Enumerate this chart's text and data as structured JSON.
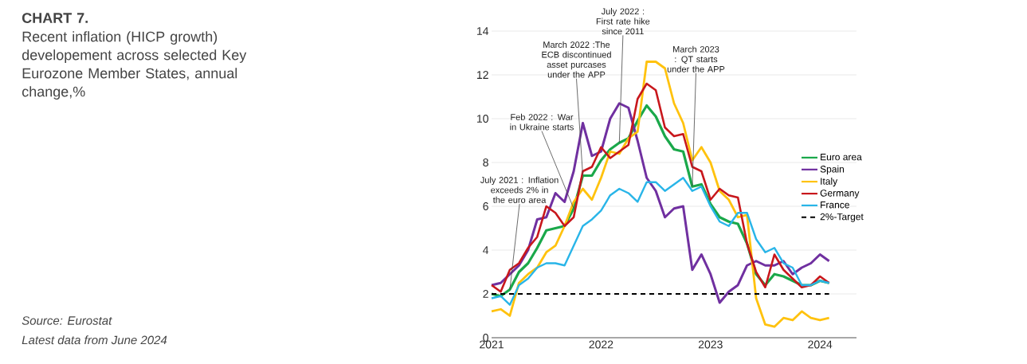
{
  "chart_data": {
    "type": "line",
    "title": "CHART 7.",
    "subtitle": "Recent inflation (HICP growth) developement across selected Key Eurozone Member States, annual change,%",
    "x": [
      "2021-05",
      "2021-06",
      "2021-07",
      "2021-08",
      "2021-09",
      "2021-10",
      "2021-11",
      "2021-12",
      "2022-01",
      "2022-02",
      "2022-03",
      "2022-04",
      "2022-05",
      "2022-06",
      "2022-07",
      "2022-08",
      "2022-09",
      "2022-10",
      "2022-11",
      "2022-12",
      "2023-01",
      "2023-02",
      "2023-03",
      "2023-04",
      "2023-05",
      "2023-06",
      "2023-07",
      "2023-08",
      "2023-09",
      "2023-10",
      "2023-11",
      "2023-12",
      "2024-01",
      "2024-02",
      "2024-03",
      "2024-04",
      "2024-05",
      "2024-06"
    ],
    "series": [
      {
        "name": "Euro area",
        "color": "#1aa84a",
        "values": [
          2.0,
          1.9,
          2.2,
          3.0,
          3.4,
          4.1,
          4.9,
          5.0,
          5.1,
          5.9,
          7.4,
          7.4,
          8.1,
          8.6,
          8.9,
          9.1,
          9.9,
          10.6,
          10.1,
          9.2,
          8.6,
          8.5,
          6.9,
          7.0,
          6.1,
          5.5,
          5.3,
          5.2,
          4.3,
          2.9,
          2.4,
          2.9,
          2.8,
          2.6,
          2.4,
          2.4,
          2.6,
          2.5
        ]
      },
      {
        "name": "Spain",
        "color": "#7030a0",
        "values": [
          2.4,
          2.5,
          2.9,
          3.3,
          4.0,
          5.4,
          5.5,
          6.6,
          6.2,
          7.6,
          9.8,
          8.3,
          8.5,
          10.0,
          10.7,
          10.5,
          9.0,
          7.3,
          6.7,
          5.5,
          5.9,
          6.0,
          3.1,
          3.8,
          2.9,
          1.6,
          2.1,
          2.4,
          3.3,
          3.5,
          3.3,
          3.3,
          3.5,
          2.9,
          3.2,
          3.4,
          3.8,
          3.5
        ]
      },
      {
        "name": "Italy",
        "color": "#ffc20e",
        "values": [
          1.2,
          1.3,
          1.0,
          2.5,
          2.9,
          3.2,
          3.9,
          4.2,
          5.1,
          6.2,
          6.8,
          6.3,
          7.3,
          8.5,
          8.4,
          9.1,
          9.4,
          12.6,
          12.6,
          12.3,
          10.7,
          9.8,
          8.1,
          8.7,
          8.0,
          6.7,
          6.3,
          5.5,
          5.6,
          1.8,
          0.6,
          0.5,
          0.9,
          0.8,
          1.2,
          0.9,
          0.8,
          0.9
        ]
      },
      {
        "name": "Germany",
        "color": "#c8171c",
        "values": [
          2.4,
          2.1,
          3.1,
          3.4,
          4.1,
          4.6,
          6.0,
          5.7,
          5.1,
          5.5,
          7.6,
          7.8,
          8.7,
          8.2,
          8.5,
          8.8,
          10.9,
          11.6,
          11.3,
          9.6,
          9.2,
          9.3,
          7.8,
          7.6,
          6.3,
          6.8,
          6.5,
          6.4,
          4.3,
          3.0,
          2.3,
          3.8,
          3.1,
          2.7,
          2.3,
          2.4,
          2.8,
          2.5
        ]
      },
      {
        "name": "France",
        "color": "#29b5e8",
        "values": [
          1.8,
          1.9,
          1.5,
          2.4,
          2.7,
          3.2,
          3.4,
          3.4,
          3.3,
          4.2,
          5.1,
          5.4,
          5.8,
          6.5,
          6.8,
          6.6,
          6.2,
          7.1,
          7.1,
          6.7,
          7.0,
          7.3,
          6.7,
          6.9,
          6.0,
          5.3,
          5.1,
          5.7,
          5.7,
          4.5,
          3.9,
          4.1,
          3.4,
          3.2,
          2.4,
          2.4,
          2.6,
          2.5
        ]
      }
    ],
    "xlim": [
      "2021-05",
      "2024-09"
    ],
    "xticks": [
      {
        "value": "2021-05",
        "label": "2021"
      },
      {
        "value": "2022-05",
        "label": "2022"
      },
      {
        "value": "2023-05",
        "label": "2023"
      },
      {
        "value": "2024-05",
        "label": "2024"
      }
    ],
    "ylim": [
      0,
      14
    ],
    "yticks": [
      0,
      2,
      4,
      6,
      8,
      10,
      12,
      14
    ],
    "ref_lines": [
      {
        "axis": "y",
        "value": 2,
        "label": "2%-Target",
        "color": "#000000",
        "line_style": "dashed"
      }
    ],
    "annotations": [
      {
        "text": "July 2021 : Inflation exceeds 2% in the euro area",
        "x": "2021-07",
        "y": 2.2
      },
      {
        "text": "Feb 2022 : War in Ukraine starts",
        "x": "2022-02",
        "y": 5.9
      },
      {
        "text": "March 2022 :The ECB discontinued asset purcases under the APP",
        "x": "2022-03",
        "y": 7.4
      },
      {
        "text": "July 2022 : First rate hike since 2011",
        "x": "2022-07",
        "y": 8.9
      },
      {
        "text": "March 2023 : QT starts under the APP",
        "x": "2023-03",
        "y": 6.9
      },
      "Source: Eurostat",
      "Latest data from June 2024"
    ],
    "grid": "y",
    "legend": "right",
    "line_style": "solid"
  }
}
